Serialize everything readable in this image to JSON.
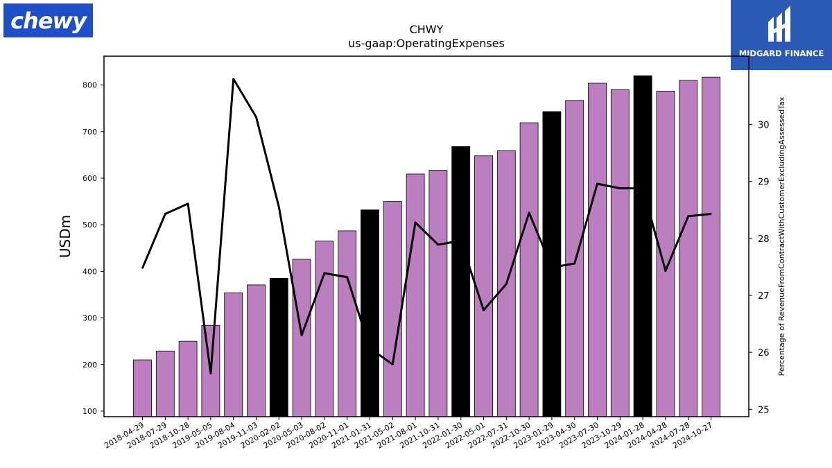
{
  "logos": {
    "left": {
      "text": "chewy",
      "color": "#1f4fc8"
    },
    "right": {
      "text": "MIDGARD FINANCE",
      "color": "#2a59b6"
    }
  },
  "colors": {
    "bar": "#bb7fbf",
    "bar_highlight": "#000000",
    "line": "#000000"
  },
  "chart_data": {
    "type": "bar",
    "title": "CHWY",
    "subtitle": "us-gaap:OperatingExpenses",
    "ylabel": "USDm",
    "y2label": "Percentage of RevenueFromContractWithCustomerExcludingAssessedTax",
    "ylim": [
      88,
      862
    ],
    "y2lim": [
      24.87,
      31.2
    ],
    "yticks": [
      100,
      200,
      300,
      400,
      500,
      600,
      700,
      800
    ],
    "y2ticks": [
      25,
      26,
      27,
      28,
      29,
      30
    ],
    "categories": [
      "2018-04-29",
      "2018-07-29",
      "2018-10-28",
      "2019-05-05",
      "2019-08-04",
      "2019-11-03",
      "2020-02-02",
      "2020-05-03",
      "2020-08-02",
      "2020-11-01",
      "2021-01-31",
      "2021-05-02",
      "2021-08-01",
      "2021-10-31",
      "2022-01-30",
      "2022-05-01",
      "2022-07-31",
      "2022-10-30",
      "2023-01-29",
      "2023-04-30",
      "2023-07-30",
      "2023-10-29",
      "2024-01-28",
      "2024-04-28",
      "2024-07-28",
      "2024-10-27"
    ],
    "series": [
      {
        "type": "bar",
        "values": [
          210,
          229,
          250,
          284,
          354,
          371,
          385,
          426,
          465,
          487,
          532,
          550,
          609,
          617,
          668,
          648,
          659,
          719,
          743,
          767,
          804,
          790,
          820,
          787,
          810,
          817
        ],
        "highlight": [
          false,
          false,
          false,
          false,
          false,
          false,
          true,
          false,
          false,
          false,
          true,
          false,
          false,
          false,
          true,
          false,
          false,
          false,
          true,
          false,
          false,
          false,
          true,
          false,
          false,
          false
        ]
      },
      {
        "type": "line",
        "axis": "right",
        "values": [
          27.48,
          28.43,
          28.61,
          25.63,
          30.8,
          30.13,
          28.55,
          26.3,
          27.39,
          27.32,
          26.07,
          25.79,
          28.28,
          27.89,
          27.96,
          26.74,
          27.2,
          28.45,
          27.49,
          27.56,
          28.96,
          28.88,
          28.88,
          27.43,
          28.39,
          28.43
        ]
      }
    ]
  }
}
